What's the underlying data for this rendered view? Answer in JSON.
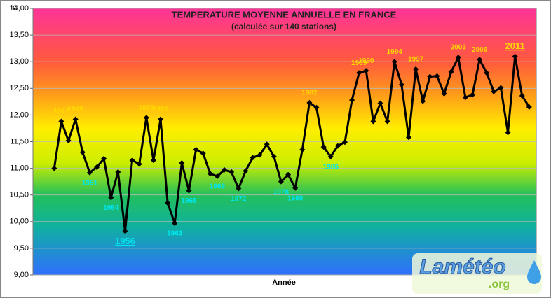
{
  "chart_data": {
    "type": "line",
    "title": "TEMPERATURE MOYENNE ANNUELLE EN FRANCE",
    "subtitle": "(calculée sur 140 stations)",
    "ylabel": "°C",
    "xlabel": "Année",
    "x": [
      1946,
      1947,
      1948,
      1949,
      1950,
      1951,
      1952,
      1953,
      1954,
      1955,
      1956,
      1957,
      1958,
      1959,
      1960,
      1961,
      1962,
      1963,
      1964,
      1965,
      1966,
      1967,
      1968,
      1969,
      1970,
      1971,
      1972,
      1973,
      1974,
      1975,
      1976,
      1977,
      1978,
      1979,
      1980,
      1981,
      1982,
      1983,
      1984,
      1985,
      1986,
      1987,
      1988,
      1989,
      1990,
      1991,
      1992,
      1993,
      1994,
      1995,
      1996,
      1997,
      1998,
      1999,
      2000,
      2001,
      2002,
      2003,
      2004,
      2005,
      2006,
      2007,
      2008,
      2009,
      2010,
      2011,
      2012,
      2013
    ],
    "xlim": [
      1943,
      2014
    ],
    "series": [
      {
        "color": "#000000",
        "values": [
          11.0,
          11.88,
          11.52,
          11.92,
          11.3,
          10.92,
          11.02,
          11.18,
          10.45,
          10.93,
          9.82,
          11.15,
          11.08,
          11.95,
          11.15,
          11.92,
          10.35,
          9.97,
          11.1,
          10.58,
          11.35,
          11.28,
          10.9,
          10.85,
          10.97,
          10.93,
          10.62,
          10.95,
          11.2,
          11.25,
          11.45,
          11.22,
          10.75,
          10.88,
          10.63,
          11.35,
          12.23,
          12.14,
          11.4,
          11.22,
          11.42,
          11.49,
          12.28,
          12.79,
          12.83,
          11.88,
          12.22,
          11.88,
          13.0,
          12.57,
          11.58,
          12.86,
          12.26,
          12.72,
          12.73,
          12.4,
          12.81,
          13.08,
          12.33,
          12.38,
          13.04,
          12.79,
          12.44,
          12.51,
          11.67,
          13.1,
          12.36,
          12.15
        ],
        "point_labels": [
          null,
          "1947",
          null,
          "1949",
          null,
          "1951",
          null,
          null,
          "1954",
          null,
          "1956",
          null,
          null,
          "1959",
          null,
          "1961",
          null,
          "1963",
          null,
          "1965",
          null,
          null,
          null,
          "1969",
          null,
          null,
          "1972",
          null,
          null,
          null,
          null,
          null,
          "1978",
          null,
          "1980",
          null,
          "1982",
          null,
          null,
          "1986",
          null,
          null,
          null,
          "1989",
          "1990",
          null,
          null,
          null,
          "1994",
          null,
          null,
          "1997",
          null,
          null,
          null,
          null,
          null,
          "2003",
          null,
          null,
          "2006",
          null,
          null,
          null,
          null,
          "2011",
          null,
          null
        ]
      }
    ],
    "label_color_high": "#ffd700",
    "label_color_low": "#00e5ee",
    "ylim": [
      9,
      14
    ],
    "yticks": [
      {
        "value": 9,
        "label": "9,00"
      },
      {
        "value": 9.5,
        "label": "9,50"
      },
      {
        "value": 10,
        "label": "10,00"
      },
      {
        "value": 10.5,
        "label": "10,50"
      },
      {
        "value": 11,
        "label": "11,00"
      },
      {
        "value": 11.5,
        "label": "11,50"
      },
      {
        "value": 12,
        "label": "12,00"
      },
      {
        "value": 12.5,
        "label": "12,50"
      },
      {
        "value": 13,
        "label": "13,00"
      },
      {
        "value": 13.5,
        "label": "13,50"
      },
      {
        "value": 14,
        "label": "14,00"
      }
    ],
    "grid": true,
    "logo": {
      "name": "Lamétéo",
      "domain": ".org"
    }
  }
}
